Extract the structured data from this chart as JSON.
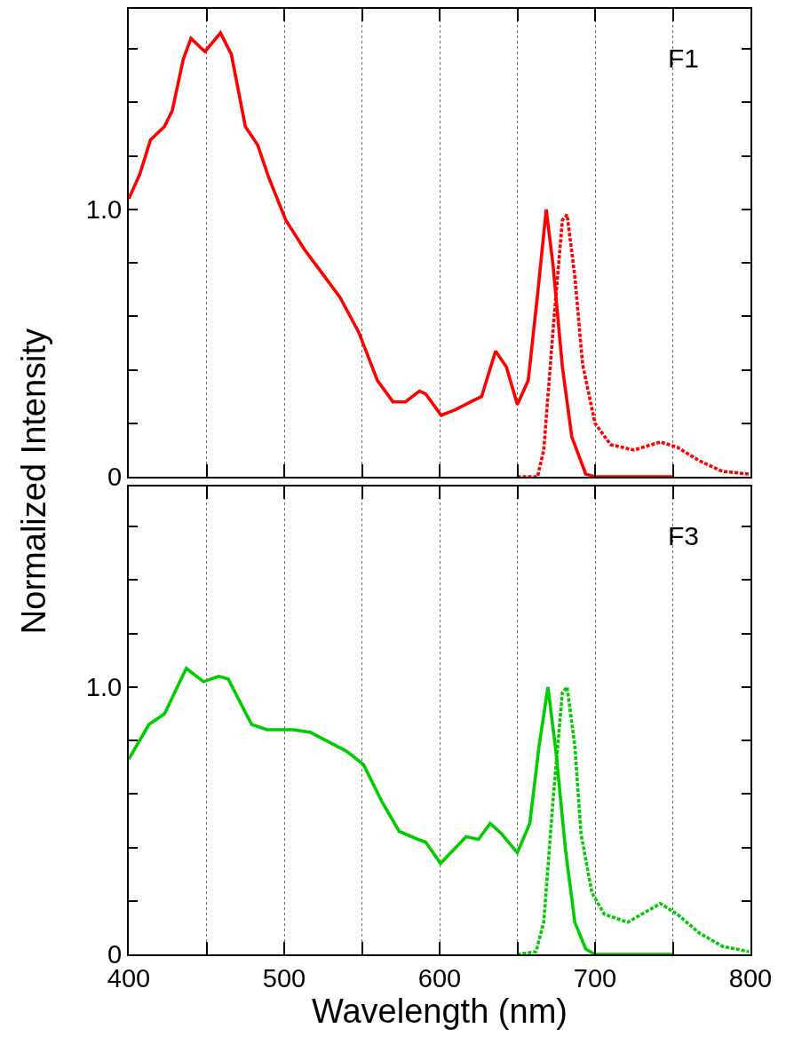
{
  "chart_data": [
    {
      "type": "line",
      "ylabel": "Normalized Intensity",
      "annotations": [
        "F1"
      ],
      "xlim": [
        400,
        800
      ],
      "xticks": [
        400,
        {
          "value": 450,
          "label": null
        },
        500,
        {
          "value": 550,
          "label": null
        },
        600,
        {
          "value": 650,
          "label": null
        },
        700,
        {
          "value": 750,
          "label": null
        },
        800
      ],
      "ylim": [
        0,
        1.75
      ],
      "yticks": [
        0,
        {
          "value": 0.2,
          "label": null
        },
        {
          "value": 0.4,
          "label": null
        },
        {
          "value": 0.6,
          "label": null
        },
        {
          "value": 0.8,
          "label": null
        },
        {
          "value": 1.0,
          "label": "1.0"
        },
        {
          "value": 1.2,
          "label": null
        },
        {
          "value": 1.4,
          "label": null
        },
        {
          "value": 1.6,
          "label": null
        }
      ],
      "grid": "x",
      "tick_labels": "y",
      "marker": "none",
      "series": [
        {
          "color": "#ff0000",
          "line_style": "solid",
          "x": [
            400,
            407,
            414,
            423,
            428,
            435,
            440,
            449,
            459,
            466,
            475,
            483,
            490,
            501,
            513,
            522,
            536,
            548,
            560,
            570,
            578,
            587,
            591,
            601,
            610,
            620,
            627,
            636,
            643,
            650,
            657,
            663,
            668.6,
            673,
            679,
            685,
            694,
            700,
            750
          ],
          "values": [
            1.04,
            1.13,
            1.26,
            1.31,
            1.37,
            1.56,
            1.64,
            1.59,
            1.66,
            1.58,
            1.31,
            1.24,
            1.12,
            0.96,
            0.85,
            0.78,
            0.67,
            0.54,
            0.36,
            0.28,
            0.28,
            0.32,
            0.31,
            0.23,
            0.25,
            0.28,
            0.3,
            0.47,
            0.41,
            0.27,
            0.36,
            0.68,
            1.0,
            0.79,
            0.41,
            0.15,
            0.01,
            0,
            0
          ]
        },
        {
          "color": "#ff0000",
          "line_style": "dotted",
          "x": [
            650,
            663,
            667,
            673,
            679,
            682,
            687,
            692,
            700,
            710,
            725,
            742,
            753,
            767,
            782,
            799
          ],
          "values": [
            0,
            0,
            0.1,
            0.55,
            0.96,
            0.98,
            0.75,
            0.42,
            0.2,
            0.12,
            0.1,
            0.13,
            0.11,
            0.06,
            0.02,
            0.01
          ]
        }
      ]
    },
    {
      "type": "line",
      "xlabel": "Wavelength (nm)",
      "annotations": [
        "F3"
      ],
      "xlim": [
        400,
        800
      ],
      "xticks": [
        400,
        {
          "value": 450,
          "label": null
        },
        500,
        {
          "value": 550,
          "label": null
        },
        600,
        {
          "value": 650,
          "label": null
        },
        700,
        {
          "value": 750,
          "label": null
        },
        800
      ],
      "ylim": [
        0,
        1.75
      ],
      "yticks": [
        0,
        {
          "value": 0.2,
          "label": null
        },
        {
          "value": 0.4,
          "label": null
        },
        {
          "value": 0.6,
          "label": null
        },
        {
          "value": 0.8,
          "label": null
        },
        {
          "value": 1.0,
          "label": "1.0"
        },
        {
          "value": 1.2,
          "label": null
        },
        {
          "value": 1.4,
          "label": null
        },
        {
          "value": 1.6,
          "label": null
        }
      ],
      "grid": "x",
      "marker": "none",
      "series": [
        {
          "color": "#00cc00",
          "line_style": "solid",
          "x": [
            400,
            413,
            423,
            437,
            448,
            458,
            464,
            479,
            489,
            506,
            517,
            540,
            551,
            563,
            574,
            586,
            591,
            600.6,
            617,
            625,
            632.5,
            640,
            650,
            658,
            664,
            669.7,
            675,
            681,
            687,
            694,
            700,
            750
          ],
          "values": [
            0.73,
            0.86,
            0.9,
            1.07,
            1.02,
            1.04,
            1.03,
            0.86,
            0.84,
            0.84,
            0.83,
            0.76,
            0.71,
            0.57,
            0.46,
            0.43,
            0.42,
            0.34,
            0.44,
            0.43,
            0.49,
            0.45,
            0.38,
            0.49,
            0.78,
            1.0,
            0.75,
            0.39,
            0.12,
            0.02,
            0,
            0
          ]
        },
        {
          "color": "#00cc00",
          "line_style": "dotted",
          "x": [
            650,
            662,
            667,
            673,
            679,
            682,
            687,
            691,
            698,
            706,
            721,
            742,
            753,
            767,
            782,
            799
          ],
          "values": [
            0,
            0.01,
            0.12,
            0.58,
            0.98,
            1.0,
            0.78,
            0.45,
            0.23,
            0.15,
            0.12,
            0.19,
            0.15,
            0.08,
            0.03,
            0.01
          ]
        }
      ]
    }
  ]
}
